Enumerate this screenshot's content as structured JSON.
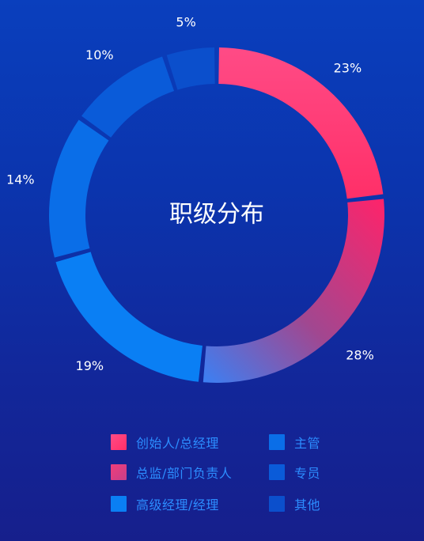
{
  "chart_data": {
    "type": "pie",
    "title": "职级分布",
    "categories": [
      "创始人/总经理",
      "总监/部门负责人",
      "高级经理/经理",
      "主管",
      "专员",
      "其他"
    ],
    "values": [
      23,
      28,
      19,
      14,
      10,
      5
    ],
    "value_labels": [
      "23%",
      "28%",
      "19%",
      "14%",
      "10%",
      "5%"
    ],
    "legend_position": "bottom",
    "colors": [
      "#ff3f79",
      "#e23d82",
      "#0a7ff4",
      "#0a6ee8",
      "#0a5bd9",
      "#0b4fcc"
    ],
    "style": "donut"
  }
}
